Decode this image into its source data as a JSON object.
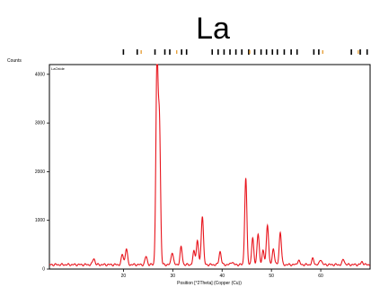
{
  "chart_data": {
    "type": "line",
    "title": "La",
    "xlabel": "Position [°2Theta] (Copper (Cu))",
    "ylabel": "Counts",
    "legend_label": "LaOxide",
    "xlim": [
      5,
      70
    ],
    "ylim": [
      0,
      4200
    ],
    "x_ticks": [
      20,
      30,
      40,
      50,
      60
    ],
    "y_ticks": [
      0,
      1000,
      2000,
      3000,
      4000
    ],
    "grid": false,
    "line_color": "#e8141c",
    "reference_color": "#000000",
    "marker_color": "#e8a23c",
    "baseline": 90,
    "peaks": [
      {
        "x": 14.0,
        "y": 220
      },
      {
        "x": 19.8,
        "y": 300
      },
      {
        "x": 20.6,
        "y": 420
      },
      {
        "x": 24.6,
        "y": 260
      },
      {
        "x": 26.8,
        "y": 4200
      },
      {
        "x": 27.3,
        "y": 2950
      },
      {
        "x": 29.9,
        "y": 350
      },
      {
        "x": 31.7,
        "y": 450
      },
      {
        "x": 34.3,
        "y": 360
      },
      {
        "x": 35.0,
        "y": 580
      },
      {
        "x": 36.0,
        "y": 1100
      },
      {
        "x": 39.6,
        "y": 360
      },
      {
        "x": 42.0,
        "y": 150
      },
      {
        "x": 44.8,
        "y": 1860
      },
      {
        "x": 46.2,
        "y": 620
      },
      {
        "x": 47.3,
        "y": 720
      },
      {
        "x": 48.3,
        "y": 380
      },
      {
        "x": 49.2,
        "y": 920
      },
      {
        "x": 50.4,
        "y": 420
      },
      {
        "x": 51.8,
        "y": 760
      },
      {
        "x": 55.5,
        "y": 180
      },
      {
        "x": 58.4,
        "y": 210
      },
      {
        "x": 60.0,
        "y": 200
      },
      {
        "x": 64.6,
        "y": 200
      },
      {
        "x": 68.4,
        "y": 150
      }
    ],
    "reference_lines": [
      20.0,
      22.8,
      26.4,
      28.4,
      29.4,
      31.8,
      32.8,
      38.0,
      39.2,
      40.4,
      41.6,
      42.8,
      44.0,
      45.4,
      46.6,
      47.9,
      49.0,
      50.2,
      51.2,
      52.6,
      54.0,
      55.2,
      58.6,
      59.6,
      66.2,
      68.0,
      69.4
    ],
    "marker_positions": [
      23.6,
      30.8,
      45.6,
      60.4,
      67.6
    ]
  }
}
